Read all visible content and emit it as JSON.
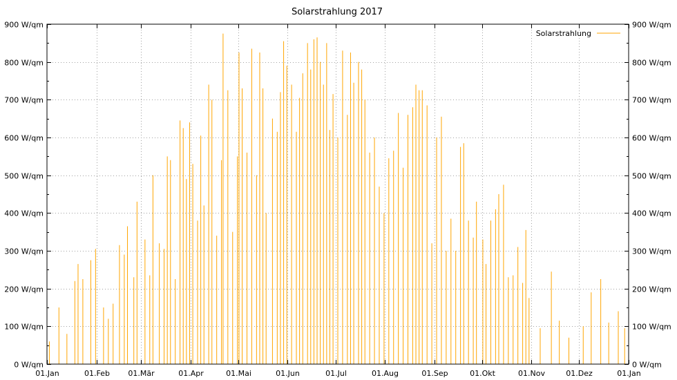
{
  "chart_data": {
    "type": "bar",
    "title": "Solarstrahlung 2017",
    "xlabel": "",
    "ylabel": "",
    "x_domain": [
      "2017-01-01",
      "2018-01-01"
    ],
    "x_tick_labels": [
      "01.Jan",
      "01.Feb",
      "01.Mär",
      "01.Apr",
      "01.Mai",
      "01.Jun",
      "01.Jul",
      "01.Aug",
      "01.Sep",
      "01.Okt",
      "01.Nov",
      "01.Dez",
      "01.Jan"
    ],
    "x_tick_dates": [
      "2017-01-01",
      "2017-02-01",
      "2017-03-01",
      "2017-04-01",
      "2017-05-01",
      "2017-06-01",
      "2017-07-01",
      "2017-08-01",
      "2017-09-01",
      "2017-10-01",
      "2017-11-01",
      "2017-12-01",
      "2018-01-01"
    ],
    "y_tick_labels": [
      "0 W/qm",
      "100 W/qm",
      "200 W/qm",
      "300 W/qm",
      "400 W/qm",
      "500 W/qm",
      "600 W/qm",
      "700 W/qm",
      "800 W/qm",
      "900 W/qm"
    ],
    "y_tick_values": [
      0,
      100,
      200,
      300,
      400,
      500,
      600,
      700,
      800,
      900
    ],
    "ylim": [
      0,
      900
    ],
    "grid": true,
    "legend_position": "top-right",
    "series": [
      {
        "name": "Solarstrahlung",
        "color": "#ffa500",
        "points": [
          {
            "x": "2017-01-02",
            "y": 60
          },
          {
            "x": "2017-01-08",
            "y": 150
          },
          {
            "x": "2017-01-13",
            "y": 80
          },
          {
            "x": "2017-01-18",
            "y": 220
          },
          {
            "x": "2017-01-20",
            "y": 265
          },
          {
            "x": "2017-01-23",
            "y": 225
          },
          {
            "x": "2017-01-28",
            "y": 275
          },
          {
            "x": "2017-01-31",
            "y": 305
          },
          {
            "x": "2017-02-05",
            "y": 150
          },
          {
            "x": "2017-02-08",
            "y": 120
          },
          {
            "x": "2017-02-11",
            "y": 160
          },
          {
            "x": "2017-02-15",
            "y": 315
          },
          {
            "x": "2017-02-18",
            "y": 290
          },
          {
            "x": "2017-02-20",
            "y": 365
          },
          {
            "x": "2017-02-24",
            "y": 230
          },
          {
            "x": "2017-02-26",
            "y": 430
          },
          {
            "x": "2017-03-03",
            "y": 330
          },
          {
            "x": "2017-03-06",
            "y": 235
          },
          {
            "x": "2017-03-08",
            "y": 500
          },
          {
            "x": "2017-03-12",
            "y": 320
          },
          {
            "x": "2017-03-15",
            "y": 305
          },
          {
            "x": "2017-03-17",
            "y": 550
          },
          {
            "x": "2017-03-19",
            "y": 540
          },
          {
            "x": "2017-03-22",
            "y": 225
          },
          {
            "x": "2017-03-25",
            "y": 645
          },
          {
            "x": "2017-03-27",
            "y": 625
          },
          {
            "x": "2017-03-29",
            "y": 490
          },
          {
            "x": "2017-03-31",
            "y": 640
          },
          {
            "x": "2017-04-02",
            "y": 530
          },
          {
            "x": "2017-04-05",
            "y": 380
          },
          {
            "x": "2017-04-07",
            "y": 605
          },
          {
            "x": "2017-04-09",
            "y": 420
          },
          {
            "x": "2017-04-12",
            "y": 740
          },
          {
            "x": "2017-04-14",
            "y": 700
          },
          {
            "x": "2017-04-17",
            "y": 340
          },
          {
            "x": "2017-04-20",
            "y": 540
          },
          {
            "x": "2017-04-21",
            "y": 875
          },
          {
            "x": "2017-04-24",
            "y": 725
          },
          {
            "x": "2017-04-27",
            "y": 350
          },
          {
            "x": "2017-04-30",
            "y": 550
          },
          {
            "x": "2017-05-01",
            "y": 825
          },
          {
            "x": "2017-05-03",
            "y": 730
          },
          {
            "x": "2017-05-06",
            "y": 560
          },
          {
            "x": "2017-05-09",
            "y": 835
          },
          {
            "x": "2017-05-12",
            "y": 500
          },
          {
            "x": "2017-05-14",
            "y": 825
          },
          {
            "x": "2017-05-16",
            "y": 730
          },
          {
            "x": "2017-05-18",
            "y": 400
          },
          {
            "x": "2017-05-22",
            "y": 650
          },
          {
            "x": "2017-05-25",
            "y": 615
          },
          {
            "x": "2017-05-27",
            "y": 720
          },
          {
            "x": "2017-05-29",
            "y": 855
          },
          {
            "x": "2017-05-31",
            "y": 790
          },
          {
            "x": "2017-06-03",
            "y": 740
          },
          {
            "x": "2017-06-06",
            "y": 615
          },
          {
            "x": "2017-06-08",
            "y": 705
          },
          {
            "x": "2017-06-10",
            "y": 770
          },
          {
            "x": "2017-06-13",
            "y": 850
          },
          {
            "x": "2017-06-15",
            "y": 780
          },
          {
            "x": "2017-06-17",
            "y": 860
          },
          {
            "x": "2017-06-19",
            "y": 865
          },
          {
            "x": "2017-06-21",
            "y": 800
          },
          {
            "x": "2017-06-23",
            "y": 740
          },
          {
            "x": "2017-06-25",
            "y": 850
          },
          {
            "x": "2017-06-27",
            "y": 620
          },
          {
            "x": "2017-06-29",
            "y": 715
          },
          {
            "x": "2017-07-02",
            "y": 600
          },
          {
            "x": "2017-07-05",
            "y": 830
          },
          {
            "x": "2017-07-08",
            "y": 660
          },
          {
            "x": "2017-07-10",
            "y": 825
          },
          {
            "x": "2017-07-12",
            "y": 745
          },
          {
            "x": "2017-07-15",
            "y": 800
          },
          {
            "x": "2017-07-17",
            "y": 780
          },
          {
            "x": "2017-07-19",
            "y": 700
          },
          {
            "x": "2017-07-22",
            "y": 560
          },
          {
            "x": "2017-07-25",
            "y": 600
          },
          {
            "x": "2017-07-28",
            "y": 470
          },
          {
            "x": "2017-07-31",
            "y": 400
          },
          {
            "x": "2017-08-03",
            "y": 545
          },
          {
            "x": "2017-08-06",
            "y": 565
          },
          {
            "x": "2017-08-09",
            "y": 665
          },
          {
            "x": "2017-08-12",
            "y": 520
          },
          {
            "x": "2017-08-15",
            "y": 660
          },
          {
            "x": "2017-08-18",
            "y": 680
          },
          {
            "x": "2017-08-20",
            "y": 740
          },
          {
            "x": "2017-08-22",
            "y": 725
          },
          {
            "x": "2017-08-24",
            "y": 725
          },
          {
            "x": "2017-08-27",
            "y": 685
          },
          {
            "x": "2017-08-30",
            "y": 320
          },
          {
            "x": "2017-09-02",
            "y": 600
          },
          {
            "x": "2017-09-05",
            "y": 655
          },
          {
            "x": "2017-09-08",
            "y": 300
          },
          {
            "x": "2017-09-11",
            "y": 385
          },
          {
            "x": "2017-09-14",
            "y": 300
          },
          {
            "x": "2017-09-17",
            "y": 575
          },
          {
            "x": "2017-09-19",
            "y": 585
          },
          {
            "x": "2017-09-22",
            "y": 380
          },
          {
            "x": "2017-09-25",
            "y": 335
          },
          {
            "x": "2017-09-27",
            "y": 430
          },
          {
            "x": "2017-10-01",
            "y": 330
          },
          {
            "x": "2017-10-03",
            "y": 265
          },
          {
            "x": "2017-10-06",
            "y": 380
          },
          {
            "x": "2017-10-09",
            "y": 410
          },
          {
            "x": "2017-10-11",
            "y": 450
          },
          {
            "x": "2017-10-14",
            "y": 475
          },
          {
            "x": "2017-10-17",
            "y": 230
          },
          {
            "x": "2017-10-20",
            "y": 235
          },
          {
            "x": "2017-10-23",
            "y": 310
          },
          {
            "x": "2017-10-26",
            "y": 215
          },
          {
            "x": "2017-10-28",
            "y": 355
          },
          {
            "x": "2017-10-30",
            "y": 175
          },
          {
            "x": "2017-11-06",
            "y": 95
          },
          {
            "x": "2017-11-13",
            "y": 245
          },
          {
            "x": "2017-11-18",
            "y": 115
          },
          {
            "x": "2017-11-24",
            "y": 70
          },
          {
            "x": "2017-12-03",
            "y": 100
          },
          {
            "x": "2017-12-08",
            "y": 190
          },
          {
            "x": "2017-12-14",
            "y": 225
          },
          {
            "x": "2017-12-19",
            "y": 110
          },
          {
            "x": "2017-12-25",
            "y": 140
          },
          {
            "x": "2017-12-29",
            "y": 95
          }
        ]
      }
    ]
  }
}
